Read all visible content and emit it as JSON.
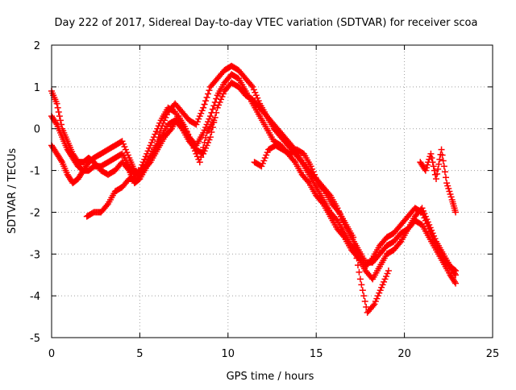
{
  "chart_data": {
    "type": "scatter",
    "title": "Day 222 of 2017, Sidereal Day-to-day VTEC variation (SDTVAR) for receiver scoa",
    "xlabel": "GPS time / hours",
    "ylabel": "SDTVAR / TECUs",
    "xlim": [
      0,
      25
    ],
    "ylim": [
      -5,
      2
    ],
    "x_ticks": [
      0,
      5,
      10,
      15,
      20,
      25
    ],
    "y_ticks": [
      -5,
      -4,
      -3,
      -2,
      -1,
      0,
      1,
      2
    ],
    "x_tick_labels": [
      "0",
      "5",
      "10",
      "15",
      "20",
      "25"
    ],
    "y_tick_labels": [
      "-5",
      "-4",
      "-3",
      "-2",
      "-1",
      "0",
      "1",
      "2"
    ],
    "grid": true,
    "marker": "+",
    "color": "#ff0000",
    "series": [
      {
        "x": [
          0.0,
          0.3,
          0.6,
          0.9,
          1.2,
          1.5,
          1.8,
          2.1,
          2.4,
          2.8,
          3.2,
          3.6,
          4.0,
          4.4,
          4.7,
          5.0,
          5.4,
          5.8,
          6.2,
          6.6,
          7.0,
          7.4,
          7.8,
          8.2,
          8.6,
          9.0,
          9.4,
          9.8,
          10.2,
          10.6,
          11.0,
          11.4,
          11.8,
          12.2,
          12.6,
          13.0,
          13.4,
          13.8,
          14.2,
          14.6,
          15.0,
          15.4,
          15.8,
          16.2,
          16.6,
          17.0,
          17.4,
          17.8,
          18.2,
          18.6,
          19.0,
          19.4,
          19.8,
          20.2,
          20.6,
          21.0,
          21.4,
          21.8,
          22.2,
          22.6,
          22.9
        ],
        "y": [
          0.9,
          0.6,
          0.0,
          -0.3,
          -0.6,
          -0.8,
          -0.8,
          -0.7,
          -0.8,
          -1.0,
          -1.1,
          -1.0,
          -0.8,
          -1.0,
          -1.3,
          -1.2,
          -0.9,
          -0.6,
          0.0,
          0.4,
          0.6,
          0.4,
          0.2,
          0.1,
          0.5,
          1.0,
          1.2,
          1.4,
          1.5,
          1.4,
          1.2,
          1.0,
          0.6,
          0.3,
          0.0,
          -0.2,
          -0.4,
          -0.6,
          -0.8,
          -1.0,
          -1.2,
          -1.4,
          -1.6,
          -1.9,
          -2.3,
          -2.6,
          -2.9,
          -3.2,
          -3.2,
          -3.0,
          -2.8,
          -2.7,
          -2.5,
          -2.4,
          -2.1,
          -1.9,
          -2.3,
          -2.7,
          -3.0,
          -3.3,
          -3.4
        ]
      },
      {
        "x": [
          0.0,
          0.3,
          0.6,
          0.9,
          1.2,
          1.5,
          1.8,
          2.1,
          2.4,
          2.8,
          3.2,
          3.6,
          4.0,
          4.4,
          4.7,
          5.0,
          5.4,
          5.8,
          6.2,
          6.6,
          7.0,
          7.4,
          7.8,
          8.2,
          8.6,
          9.0,
          9.4,
          9.8,
          10.2,
          10.6,
          11.0,
          11.4,
          11.8,
          12.2,
          12.6,
          13.0,
          13.4,
          13.8,
          14.2,
          14.6,
          15.0,
          15.4,
          15.8,
          16.2,
          16.6,
          17.0,
          17.4,
          17.8,
          18.2,
          18.6,
          19.0,
          19.4,
          19.8,
          20.2,
          20.6,
          21.0,
          21.4,
          21.8,
          22.2,
          22.6,
          22.9
        ],
        "y": [
          0.3,
          0.1,
          -0.2,
          -0.5,
          -0.7,
          -0.9,
          -1.0,
          -1.0,
          -0.9,
          -0.9,
          -0.8,
          -0.7,
          -0.6,
          -0.9,
          -1.1,
          -1.0,
          -0.6,
          -0.2,
          0.2,
          0.5,
          0.4,
          0.1,
          -0.2,
          -0.4,
          -0.1,
          0.3,
          0.8,
          1.1,
          1.3,
          1.2,
          0.9,
          0.6,
          0.3,
          0.0,
          -0.3,
          -0.4,
          -0.6,
          -0.8,
          -1.1,
          -1.3,
          -1.6,
          -1.8,
          -2.1,
          -2.4,
          -2.6,
          -2.9,
          -3.1,
          -3.4,
          -3.6,
          -3.3,
          -3.0,
          -2.9,
          -2.7,
          -2.4,
          -2.2,
          -2.3,
          -2.6,
          -2.9,
          -3.2,
          -3.5,
          -3.7
        ]
      },
      {
        "x": [
          0.0,
          0.3,
          0.6,
          0.9,
          1.2,
          1.5,
          1.8,
          2.1,
          2.4,
          2.8,
          3.2,
          3.6,
          4.0,
          4.4,
          4.7,
          5.0,
          5.4,
          5.8,
          6.2,
          6.6,
          7.0,
          7.4,
          7.8,
          8.2,
          8.6,
          9.0,
          9.4,
          9.8,
          10.2,
          10.6,
          11.0,
          11.4,
          11.8,
          12.2,
          12.6,
          13.0,
          13.4,
          13.8,
          14.2,
          14.6,
          15.0,
          15.4,
          15.8,
          16.2,
          16.6,
          17.0,
          17.4,
          17.8,
          18.2,
          18.6,
          19.0,
          19.4,
          19.8,
          20.2,
          20.6,
          21.0,
          21.4,
          21.8,
          22.2,
          22.6,
          22.9
        ],
        "y": [
          -0.4,
          -0.6,
          -0.8,
          -1.1,
          -1.3,
          -1.2,
          -1.0,
          -0.8,
          -0.7,
          -0.6,
          -0.5,
          -0.4,
          -0.3,
          -0.7,
          -1.0,
          -1.1,
          -0.8,
          -0.5,
          -0.2,
          0.1,
          0.2,
          0.0,
          -0.3,
          -0.5,
          -0.6,
          -0.2,
          0.5,
          0.9,
          1.1,
          1.0,
          0.8,
          0.7,
          0.5,
          0.3,
          0.1,
          -0.1,
          -0.3,
          -0.5,
          -0.8,
          -1.1,
          -1.4,
          -1.7,
          -2.0,
          -2.2,
          -2.5,
          -2.8,
          -3.0,
          -3.3,
          -3.1,
          -2.8,
          -2.6,
          -2.5,
          -2.3,
          -2.1,
          -1.9,
          -2.0,
          -2.4,
          -2.8,
          -3.1,
          -3.3,
          -3.5
        ]
      },
      {
        "x": [
          2.0,
          2.4,
          2.8,
          3.2,
          3.6,
          4.0,
          4.4,
          4.8,
          5.2,
          5.6,
          6.0,
          6.4,
          6.8,
          7.2,
          7.6,
          8.0,
          8.4,
          8.8,
          9.2
        ],
        "y": [
          -2.1,
          -2.0,
          -2.0,
          -1.8,
          -1.5,
          -1.4,
          -1.2,
          -1.2,
          -1.0,
          -0.8,
          -0.5,
          -0.2,
          0.0,
          0.3,
          0.0,
          -0.4,
          -0.8,
          -0.1,
          0.2
        ]
      },
      {
        "x": [
          11.5,
          11.9,
          12.3,
          12.7,
          13.1,
          13.5,
          13.9,
          14.3,
          14.7,
          15.1,
          15.5,
          15.9,
          16.3,
          16.7,
          17.1,
          17.5,
          17.9,
          18.3,
          18.7,
          19.1
        ],
        "y": [
          -0.8,
          -0.9,
          -0.5,
          -0.4,
          -0.5,
          -0.6,
          -0.5,
          -0.6,
          -0.9,
          -1.3,
          -1.5,
          -1.8,
          -2.0,
          -2.3,
          -2.6,
          -3.6,
          -4.4,
          -4.2,
          -3.8,
          -3.4
        ]
      },
      {
        "x": [
          20.9,
          21.2,
          21.5,
          21.8,
          22.1,
          22.4,
          22.7,
          22.9
        ],
        "y": [
          -0.8,
          -1.0,
          -0.6,
          -1.2,
          -0.5,
          -1.3,
          -1.7,
          -2.0
        ]
      }
    ]
  }
}
